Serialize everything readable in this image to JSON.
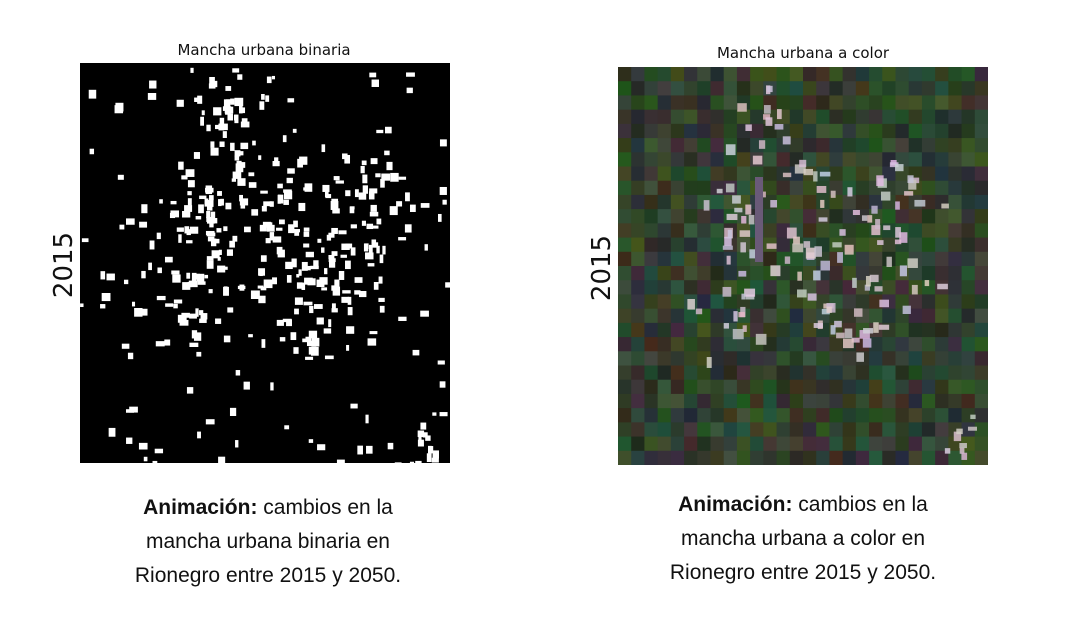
{
  "panels": [
    {
      "title": "Mancha urbana binaria",
      "year_label": "2015",
      "caption_bold": "Animación:",
      "caption_text": "cambios en la mancha urbana binaria en Rionegro entre 2015 y 2050."
    },
    {
      "title": "Mancha urbana a color",
      "year_label": "2015",
      "caption_bold": "Animación:",
      "caption_text": "cambios en la mancha urbana a color en Rionegro entre 2015 y 2050."
    }
  ]
}
